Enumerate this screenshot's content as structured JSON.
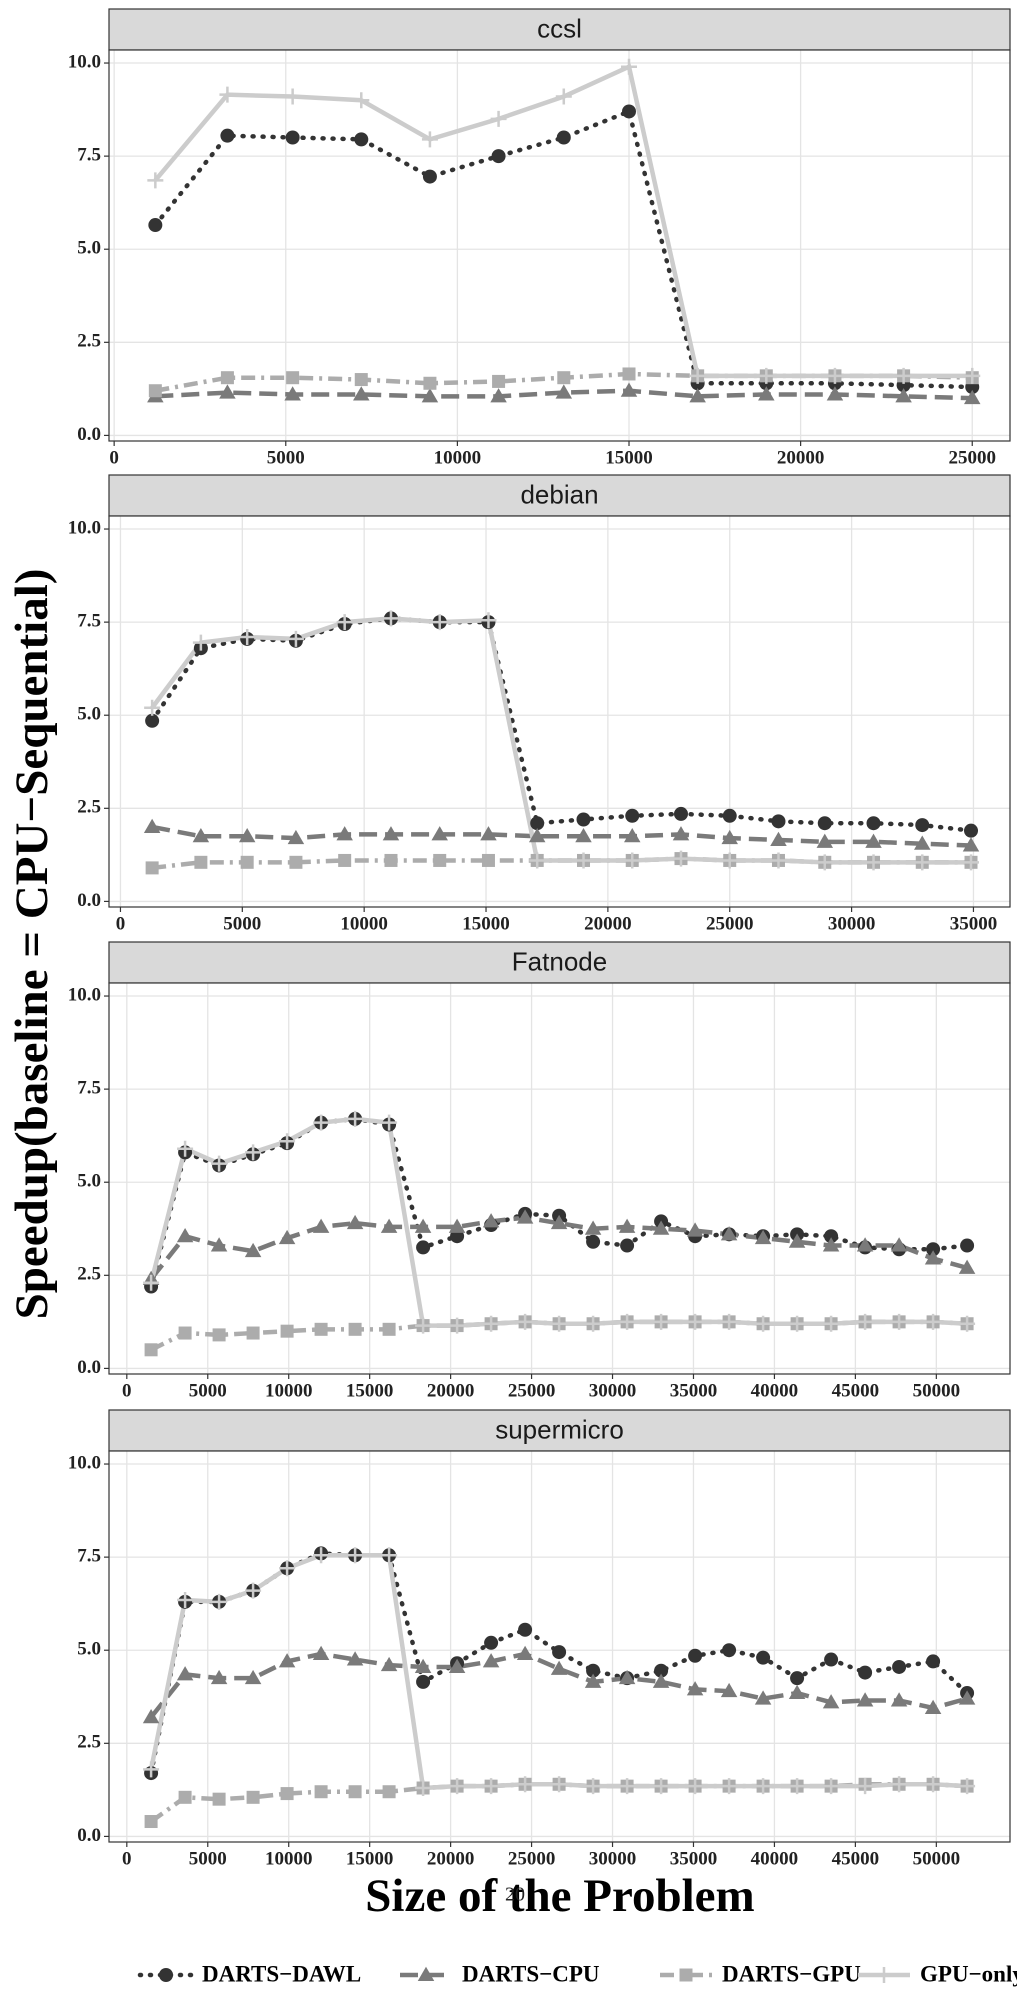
{
  "y_label": "Speedup(baseline = CPU−Sequential)",
  "x_label": "Size of the Problem",
  "page_number": "20",
  "chart_data": [
    {
      "type": "line",
      "title": "ccsl",
      "x": [
        1200,
        3300,
        5200,
        7200,
        9200,
        11200,
        13100,
        15000,
        17000,
        19000,
        21000,
        23000,
        25000
      ],
      "series": [
        {
          "name": "DARTS−DAWL",
          "color": "#333333",
          "marker": "circle",
          "values": [
            5.65,
            8.05,
            8.0,
            7.95,
            6.95,
            7.5,
            8.0,
            8.7,
            1.4,
            1.4,
            1.4,
            1.35,
            1.3
          ]
        },
        {
          "name": "DARTS−CPU",
          "color": "#7a7a7a",
          "marker": "triangle",
          "values": [
            1.05,
            1.15,
            1.1,
            1.1,
            1.05,
            1.05,
            1.15,
            1.2,
            1.05,
            1.1,
            1.1,
            1.05,
            1.0
          ]
        },
        {
          "name": "DARTS−GPU",
          "color": "#acacac",
          "marker": "square",
          "values": [
            1.2,
            1.55,
            1.55,
            1.5,
            1.4,
            1.45,
            1.55,
            1.65,
            1.6,
            1.6,
            1.6,
            1.6,
            1.55
          ]
        },
        {
          "name": "GPU−only",
          "color": "#cccccc",
          "marker": "plus",
          "values": [
            6.85,
            9.15,
            9.1,
            9.0,
            7.95,
            8.5,
            9.1,
            9.9,
            1.6,
            1.6,
            1.6,
            1.6,
            1.6
          ]
        }
      ],
      "xlim": [
        -150,
        26100
      ],
      "xticks": [
        0,
        5000,
        10000,
        15000,
        20000,
        25000
      ],
      "ylim": [
        -0.15,
        10.35
      ],
      "yticks": [
        {
          "value": 0,
          "label": "0.0"
        },
        2.5,
        {
          "value": 5,
          "label": "5.0"
        },
        7.5,
        {
          "value": 10,
          "label": "10.0"
        }
      ],
      "grid": true
    },
    {
      "type": "line",
      "title": "debian",
      "x": [
        1300,
        3300,
        5200,
        7200,
        9200,
        11100,
        13100,
        15100,
        17100,
        19000,
        21000,
        23000,
        25000,
        27000,
        28900,
        30900,
        32900,
        34900
      ],
      "series": [
        {
          "name": "DARTS−DAWL",
          "color": "#333333",
          "marker": "circle",
          "values": [
            4.85,
            6.8,
            7.05,
            7.0,
            7.45,
            7.6,
            7.5,
            7.5,
            2.1,
            2.2,
            2.3,
            2.35,
            2.3,
            2.15,
            2.1,
            2.1,
            2.05,
            1.9
          ]
        },
        {
          "name": "DARTS−CPU",
          "color": "#7a7a7a",
          "marker": "triangle",
          "values": [
            2.0,
            1.75,
            1.75,
            1.7,
            1.8,
            1.8,
            1.8,
            1.8,
            1.75,
            1.75,
            1.75,
            1.8,
            1.7,
            1.65,
            1.6,
            1.6,
            1.55,
            1.5
          ]
        },
        {
          "name": "DARTS−GPU",
          "color": "#acacac",
          "marker": "square",
          "values": [
            0.9,
            1.05,
            1.05,
            1.05,
            1.1,
            1.1,
            1.1,
            1.1,
            1.1,
            1.1,
            1.1,
            1.15,
            1.1,
            1.1,
            1.05,
            1.05,
            1.05,
            1.05
          ]
        },
        {
          "name": "GPU−only",
          "color": "#cccccc",
          "marker": "plus",
          "values": [
            5.2,
            6.95,
            7.1,
            7.05,
            7.5,
            7.6,
            7.5,
            7.55,
            1.1,
            1.1,
            1.1,
            1.15,
            1.1,
            1.1,
            1.05,
            1.05,
            1.05,
            1.05
          ]
        }
      ],
      "xlim": [
        -470,
        36500
      ],
      "xticks": [
        0,
        5000,
        10000,
        15000,
        20000,
        25000,
        30000,
        35000
      ],
      "ylim": [
        -0.15,
        10.35
      ],
      "yticks": [
        {
          "value": 0,
          "label": "0.0"
        },
        2.5,
        {
          "value": 5,
          "label": "5.0"
        },
        7.5,
        {
          "value": 10,
          "label": "10.0"
        }
      ],
      "grid": true
    },
    {
      "type": "line",
      "title": "Fatnode",
      "x": [
        1500,
        3600,
        5700,
        7800,
        9900,
        12000,
        14100,
        16200,
        18300,
        20400,
        22500,
        24600,
        26700,
        28800,
        30900,
        33000,
        35100,
        37200,
        39300,
        41400,
        43500,
        45600,
        47700,
        49800,
        51900
      ],
      "series": [
        {
          "name": "DARTS−DAWL",
          "color": "#333333",
          "marker": "circle",
          "values": [
            2.2,
            5.8,
            5.45,
            5.75,
            6.05,
            6.6,
            6.7,
            6.55,
            3.25,
            3.55,
            3.85,
            4.15,
            4.1,
            3.4,
            3.3,
            3.95,
            3.55,
            3.6,
            3.55,
            3.6,
            3.55,
            3.25,
            3.2,
            3.2,
            3.3
          ]
        },
        {
          "name": "DARTS−CPU",
          "color": "#7a7a7a",
          "marker": "triangle",
          "values": [
            2.4,
            3.55,
            3.3,
            3.15,
            3.5,
            3.8,
            3.9,
            3.8,
            3.8,
            3.8,
            3.95,
            4.05,
            3.9,
            3.75,
            3.8,
            3.75,
            3.7,
            3.6,
            3.5,
            3.4,
            3.3,
            3.3,
            3.3,
            2.95,
            2.7
          ]
        },
        {
          "name": "DARTS−GPU",
          "color": "#acacac",
          "marker": "square",
          "values": [
            0.5,
            0.95,
            0.9,
            0.95,
            1.0,
            1.05,
            1.05,
            1.05,
            1.15,
            1.15,
            1.2,
            1.25,
            1.2,
            1.2,
            1.25,
            1.25,
            1.25,
            1.25,
            1.2,
            1.2,
            1.2,
            1.25,
            1.25,
            1.25,
            1.2
          ]
        },
        {
          "name": "GPU−only",
          "color": "#cccccc",
          "marker": "plus",
          "values": [
            2.3,
            5.9,
            5.5,
            5.8,
            6.1,
            6.6,
            6.7,
            6.6,
            1.15,
            1.15,
            1.2,
            1.25,
            1.2,
            1.2,
            1.25,
            1.25,
            1.25,
            1.25,
            1.2,
            1.2,
            1.2,
            1.25,
            1.25,
            1.25,
            1.2
          ]
        }
      ],
      "xlim": [
        -1100,
        54550
      ],
      "xticks": [
        0,
        5000,
        10000,
        15000,
        20000,
        25000,
        30000,
        35000,
        40000,
        45000,
        50000
      ],
      "ylim": [
        -0.15,
        10.35
      ],
      "yticks": [
        {
          "value": 0,
          "label": "0.0"
        },
        2.5,
        {
          "value": 5,
          "label": "5.0"
        },
        7.5,
        {
          "value": 10,
          "label": "10.0"
        }
      ],
      "grid": true
    },
    {
      "type": "line",
      "title": "supermicro",
      "x": [
        1500,
        3600,
        5700,
        7800,
        9900,
        12000,
        14100,
        16200,
        18300,
        20400,
        22500,
        24600,
        26700,
        28800,
        30900,
        33000,
        35100,
        37200,
        39300,
        41400,
        43500,
        45600,
        47700,
        49800,
        51900
      ],
      "series": [
        {
          "name": "DARTS−DAWL",
          "color": "#333333",
          "marker": "circle",
          "values": [
            1.7,
            6.3,
            6.3,
            6.6,
            7.2,
            7.6,
            7.55,
            7.55,
            4.15,
            4.65,
            5.2,
            5.55,
            4.95,
            4.45,
            4.25,
            4.45,
            4.85,
            5.0,
            4.8,
            4.25,
            4.75,
            4.4,
            4.55,
            4.7,
            3.85
          ]
        },
        {
          "name": "DARTS−CPU",
          "color": "#7a7a7a",
          "marker": "triangle",
          "values": [
            3.2,
            4.35,
            4.25,
            4.25,
            4.7,
            4.9,
            4.75,
            4.6,
            4.55,
            4.55,
            4.7,
            4.9,
            4.5,
            4.15,
            4.25,
            4.15,
            3.95,
            3.9,
            3.7,
            3.85,
            3.6,
            3.65,
            3.65,
            3.45,
            3.7
          ]
        },
        {
          "name": "DARTS−GPU",
          "color": "#acacac",
          "marker": "square",
          "values": [
            0.4,
            1.05,
            1.0,
            1.05,
            1.15,
            1.2,
            1.2,
            1.2,
            1.3,
            1.35,
            1.35,
            1.4,
            1.4,
            1.35,
            1.35,
            1.35,
            1.35,
            1.35,
            1.35,
            1.35,
            1.35,
            1.4,
            1.4,
            1.4,
            1.35
          ]
        },
        {
          "name": "GPU−only",
          "color": "#cccccc",
          "marker": "plus",
          "values": [
            1.8,
            6.35,
            6.3,
            6.6,
            7.2,
            7.55,
            7.55,
            7.55,
            1.3,
            1.35,
            1.35,
            1.4,
            1.4,
            1.35,
            1.35,
            1.35,
            1.35,
            1.35,
            1.35,
            1.35,
            1.35,
            1.35,
            1.4,
            1.4,
            1.35
          ]
        }
      ],
      "xlim": [
        -1100,
        54550
      ],
      "xticks": [
        0,
        5000,
        10000,
        15000,
        20000,
        25000,
        30000,
        35000,
        40000,
        45000,
        50000
      ],
      "ylim": [
        -0.15,
        10.35
      ],
      "yticks": [
        {
          "value": 0,
          "label": "0.0"
        },
        2.5,
        {
          "value": 5,
          "label": "5.0"
        },
        7.5,
        {
          "value": 10,
          "label": "10.0"
        }
      ],
      "grid": true
    }
  ]
}
